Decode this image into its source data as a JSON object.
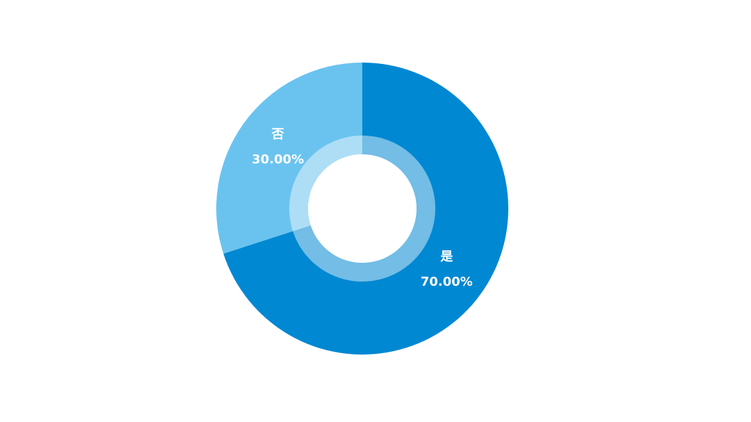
{
  "chart_data": {
    "type": "donut",
    "categories": [
      "是",
      "否"
    ],
    "values": [
      70,
      30
    ],
    "value_labels": [
      "70.00%",
      "30.00%"
    ],
    "colors": [
      "#0088d2",
      "#6ac3ef"
    ]
  }
}
